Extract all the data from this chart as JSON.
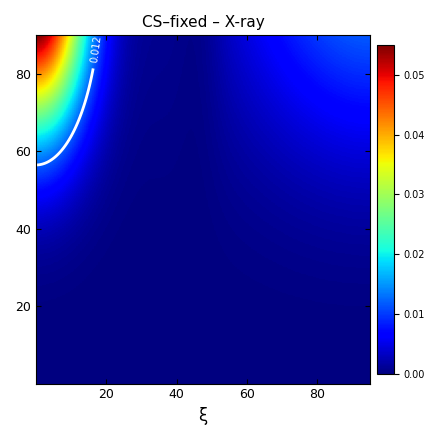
{
  "title": "CS–fixed – X-ray",
  "xlabel": "ξ",
  "xlim": [
    0,
    95
  ],
  "ylim": [
    0,
    90
  ],
  "xticks": [
    20,
    40,
    60,
    80
  ],
  "yticks": [
    20,
    40,
    60,
    80
  ],
  "contour_level": 0.012,
  "colormap": "jet",
  "vmin": 0.0,
  "vmax": 0.055,
  "figsize": [
    4.4,
    4.4
  ],
  "dpi": 100
}
